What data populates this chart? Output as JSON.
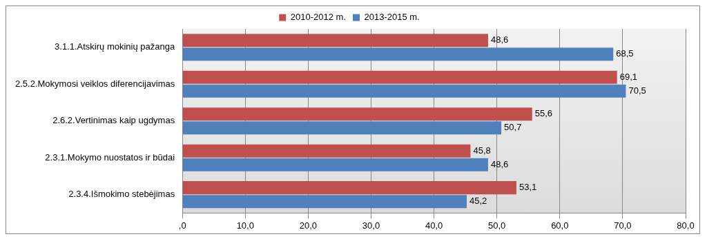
{
  "chart_data": {
    "type": "bar",
    "orientation": "horizontal",
    "categories": [
      "3.1.1.Atskirų mokinių pažanga",
      "2.5.2.Mokymosi veiklos diferencijavimas",
      "2.6.2.Vertinimas kaip ugdymas",
      "2.3.1.Mokymo nuostatos ir būdai",
      "2.3.4.Išmokimo stebėjimas"
    ],
    "series": [
      {
        "name": "2010-2012 m.",
        "color": "#c0504d",
        "values": [
          48.6,
          69.1,
          55.6,
          45.8,
          53.1
        ],
        "value_labels": [
          "48,6",
          "69,1",
          "55,6",
          "45,8",
          "53,1"
        ]
      },
      {
        "name": "2013-2015 m.",
        "color": "#4f81bd",
        "values": [
          68.5,
          70.5,
          50.7,
          48.6,
          45.2
        ],
        "value_labels": [
          "68,5",
          "70,5",
          "50,7",
          "48,6",
          "45,2"
        ]
      }
    ],
    "xlim": [
      0,
      80
    ],
    "xticks": [
      {
        "value": 0,
        "label": ",0"
      },
      {
        "value": 10,
        "label": "10,0"
      },
      {
        "value": 20,
        "label": "20,0"
      },
      {
        "value": 30,
        "label": "30,0"
      },
      {
        "value": 40,
        "label": "40,0"
      },
      {
        "value": 50,
        "label": "50,0"
      },
      {
        "value": 60,
        "label": "60,0"
      },
      {
        "value": 70,
        "label": "70,0"
      },
      {
        "value": 80,
        "label": "80,0"
      }
    ],
    "grid": "x",
    "legend": "top"
  }
}
